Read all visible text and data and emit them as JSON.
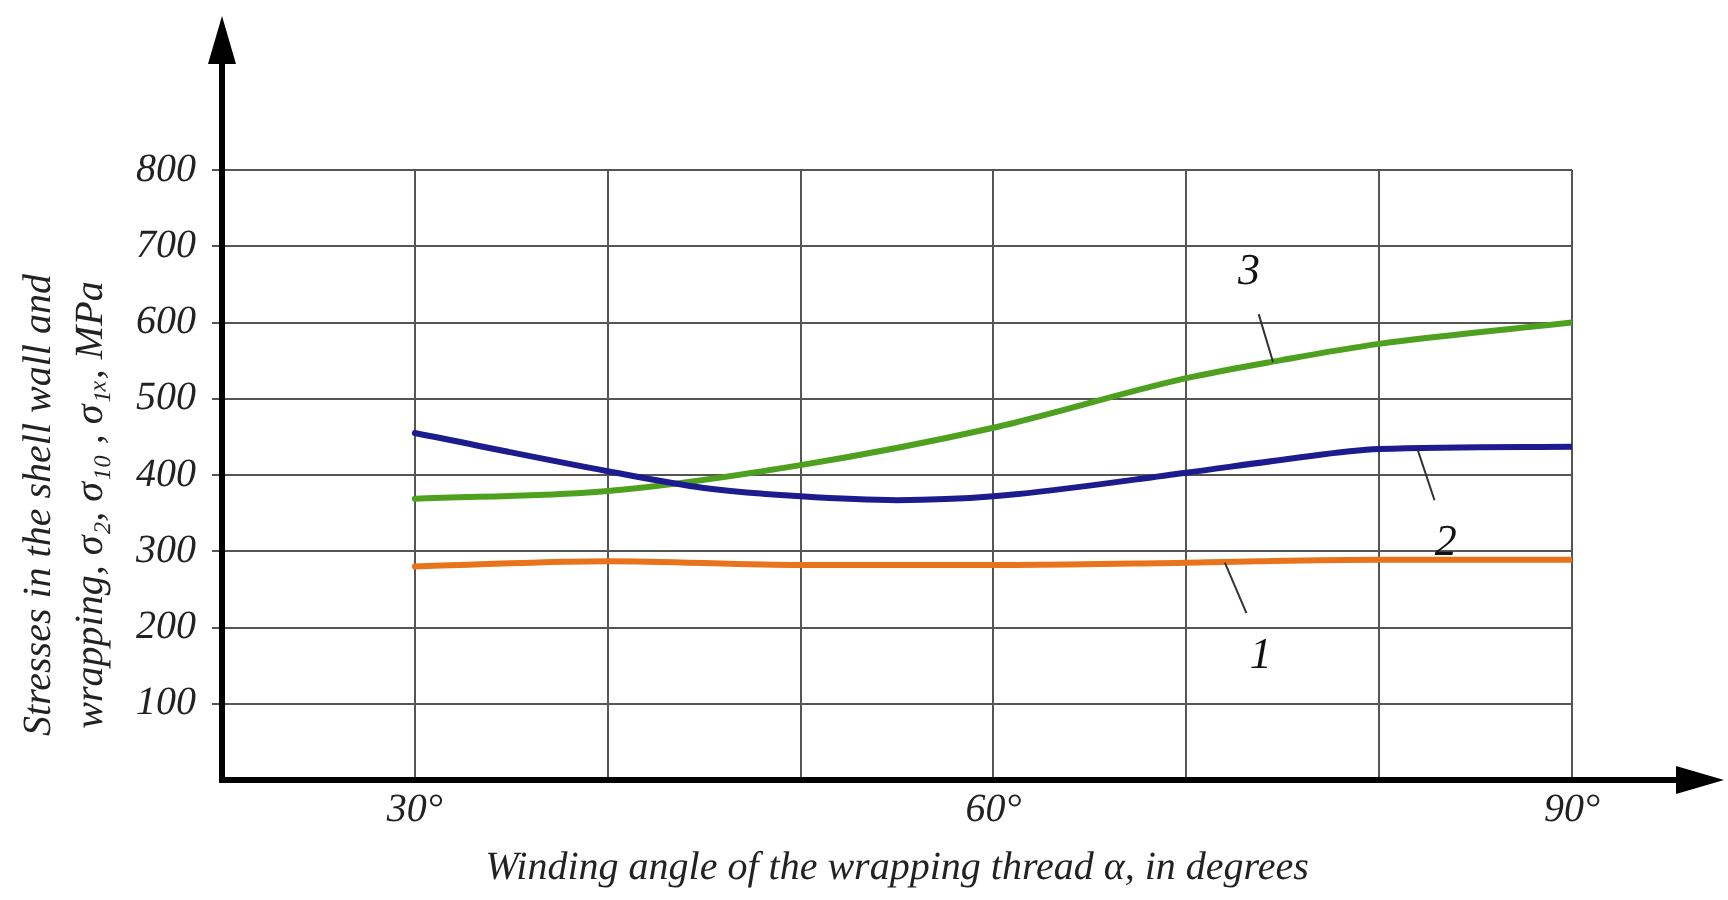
{
  "chart_data": {
    "type": "line",
    "xlabel": "Winding angle of the wrapping thread α, in degrees",
    "ylabel": "Stresses in the shell wall and wrapping, σ₂, σ₁₀ , σ₁ₓ,  MPa",
    "x": [
      30,
      40,
      45,
      50,
      55,
      60,
      70,
      75,
      80,
      90
    ],
    "series": [
      {
        "color": "#e8731a",
        "x": [
          30,
          40,
          50,
          60,
          70,
          80,
          90
        ],
        "values": [
          280,
          287,
          282,
          282,
          285,
          289,
          289
        ]
      },
      {
        "color": "#1c1c8f",
        "values": [
          455,
          405,
          383,
          372,
          367,
          372,
          403,
          420,
          434,
          437
        ]
      },
      {
        "color": "#4da11f",
        "x": [
          30,
          40,
          50,
          60,
          70,
          75,
          80,
          90
        ],
        "values": [
          369,
          379,
          413,
          462,
          527,
          551,
          572,
          600
        ]
      }
    ],
    "annotations": [
      {
        "text": "1",
        "x": 72,
        "y": 285
      },
      {
        "text": "2",
        "x": 82,
        "y": 433
      },
      {
        "text": "3",
        "x": 74.5,
        "y": 548
      }
    ],
    "xlim": [
      20,
      90
    ],
    "ylim": [
      0,
      800
    ],
    "xticks": [
      {
        "value": 30,
        "label": "30°"
      },
      {
        "value": 40,
        "label": null
      },
      {
        "value": 50,
        "label": null
      },
      {
        "value": 60,
        "label": "60°"
      },
      {
        "value": 70,
        "label": null
      },
      {
        "value": 80,
        "label": null
      },
      {
        "value": 90,
        "label": "90°"
      }
    ],
    "yticks": [
      100,
      200,
      300,
      400,
      500,
      600,
      700,
      800
    ],
    "grid": true,
    "legend": false,
    "marker": "none",
    "line_style": "solid"
  }
}
